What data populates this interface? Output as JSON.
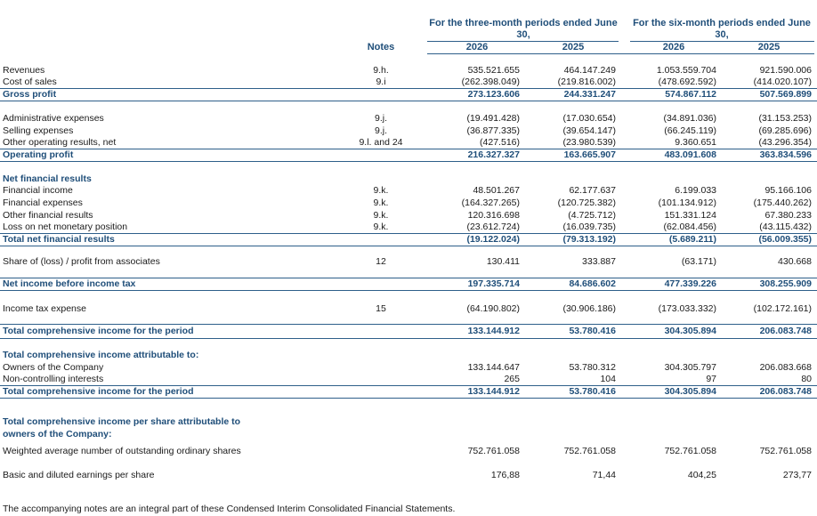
{
  "header": {
    "group1": "For the three-month periods ended June 30,",
    "group2": "For the six-month periods ended June 30,",
    "notes": "Notes",
    "years": [
      "2026",
      "2025",
      "2026",
      "2025"
    ]
  },
  "rows": [
    {
      "label": "Revenues",
      "note": "9.h.",
      "values": [
        "535.521.655",
        "464.147.249",
        "1.053.559.704",
        "921.590.006"
      ]
    },
    {
      "label": "Cost of sales",
      "note": "9.i",
      "values": [
        "(262.398.049)",
        "(219.816.002)",
        "(478.692.592)",
        "(414.020.107)"
      ]
    },
    {
      "label": "Gross profit",
      "note": "",
      "values": [
        "273.123.606",
        "244.331.247",
        "574.867.112",
        "507.569.899"
      ]
    },
    {
      "label": "Administrative expenses",
      "note": "9.j.",
      "values": [
        "(19.491.428)",
        "(17.030.654)",
        "(34.891.036)",
        "(31.153.253)"
      ]
    },
    {
      "label": "Selling expenses",
      "note": "9.j.",
      "values": [
        "(36.877.335)",
        "(39.654.147)",
        "(66.245.119)",
        "(69.285.696)"
      ]
    },
    {
      "label": "Other operating results, net",
      "note": "9.l. and 24",
      "values": [
        "(427.516)",
        "(23.980.539)",
        "9.360.651",
        "(43.296.354)"
      ]
    },
    {
      "label": "Operating profit",
      "note": "",
      "values": [
        "216.327.327",
        "163.665.907",
        "483.091.608",
        "363.834.596"
      ]
    },
    {
      "label": "Net financial results",
      "note": "",
      "values": [
        "",
        "",
        "",
        ""
      ]
    },
    {
      "label": "Financial income",
      "note": "9.k.",
      "values": [
        "48.501.267",
        "62.177.637",
        "6.199.033",
        "95.166.106"
      ]
    },
    {
      "label": "Financial expenses",
      "note": "9.k.",
      "values": [
        "(164.327.265)",
        "(120.725.382)",
        "(101.134.912)",
        "(175.440.262)"
      ]
    },
    {
      "label": "Other financial results",
      "note": "9.k.",
      "values": [
        "120.316.698",
        "(4.725.712)",
        "151.331.124",
        "67.380.233"
      ]
    },
    {
      "label": "Loss on net monetary position",
      "note": "9.k.",
      "values": [
        "(23.612.724)",
        "(16.039.735)",
        "(62.084.456)",
        "(43.115.432)"
      ]
    },
    {
      "label": "Total net financial results",
      "note": "",
      "values": [
        "(19.122.024)",
        "(79.313.192)",
        "(5.689.211)",
        "(56.009.355)"
      ]
    },
    {
      "label": "Share of (loss) / profit from associates",
      "note": "12",
      "values": [
        "130.411",
        "333.887",
        "(63.171)",
        "430.668"
      ]
    },
    {
      "label": "Net income before income tax",
      "note": "",
      "values": [
        "197.335.714",
        "84.686.602",
        "477.339.226",
        "308.255.909"
      ]
    },
    {
      "label": "Income tax expense",
      "note": "15",
      "values": [
        "(64.190.802)",
        "(30.906.186)",
        "(173.033.332)",
        "(102.172.161)"
      ]
    },
    {
      "label": "Total comprehensive income for the period",
      "note": "",
      "values": [
        "133.144.912",
        "53.780.416",
        "304.305.894",
        "206.083.748"
      ]
    },
    {
      "label": "Total comprehensive income attributable to:",
      "note": "",
      "values": [
        "",
        "",
        "",
        ""
      ]
    },
    {
      "label": "Owners of the Company",
      "note": "",
      "values": [
        "133.144.647",
        "53.780.312",
        "304.305.797",
        "206.083.668"
      ]
    },
    {
      "label": "Non-controlling interests",
      "note": "",
      "values": [
        "265",
        "104",
        "97",
        "80"
      ]
    },
    {
      "label": "Total comprehensive income for the period",
      "note": "",
      "values": [
        "133.144.912",
        "53.780.416",
        "304.305.894",
        "206.083.748"
      ]
    },
    {
      "label": "Total comprehensive income per share attributable to",
      "note": "",
      "values": [
        "",
        "",
        "",
        ""
      ]
    },
    {
      "label": "owners of the Company:",
      "note": "",
      "values": [
        "",
        "",
        "",
        ""
      ]
    },
    {
      "label": "Weighted average number of outstanding ordinary shares",
      "note": "",
      "values": [
        "752.761.058",
        "752.761.058",
        "752.761.058",
        "752.761.058"
      ]
    },
    {
      "label": "Basic and diluted earnings per share",
      "note": "",
      "values": [
        "176,88",
        "71,44",
        "404,25",
        "273,77"
      ]
    }
  ],
  "footer": "The accompanying notes are an integral part of these Condensed Interim Consolidated Financial Statements.",
  "colors": {
    "accent": "#1f4e79"
  }
}
